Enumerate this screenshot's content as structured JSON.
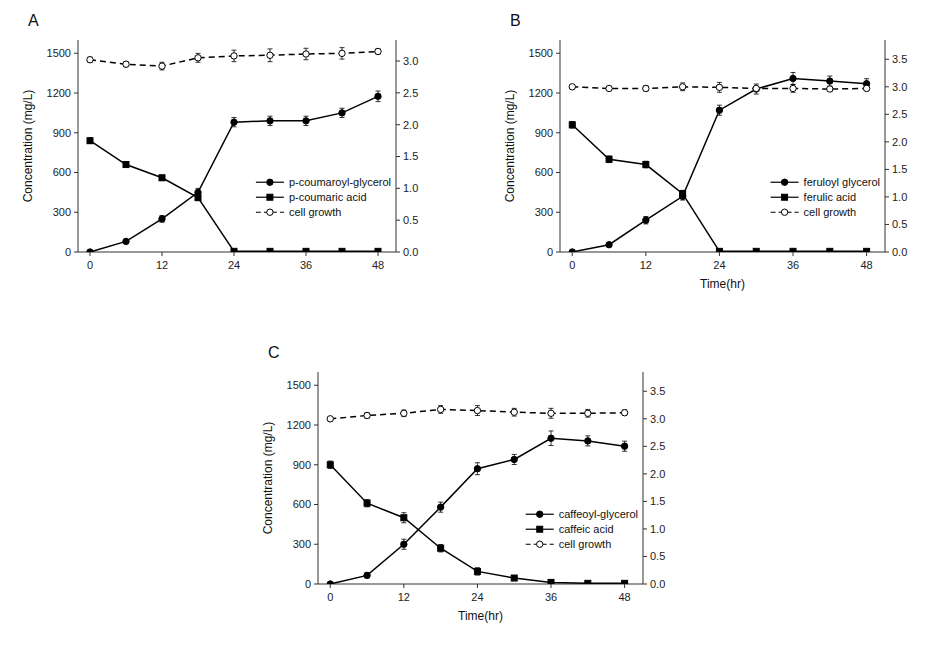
{
  "chart_data": [
    {
      "type": "line",
      "title": "A",
      "ylabel": "Concentration (mg/L)",
      "x": [
        0,
        6,
        12,
        18,
        24,
        30,
        36,
        42,
        48
      ],
      "xlim": [
        -2,
        51
      ],
      "xticks": [
        0,
        12,
        24,
        36,
        48
      ],
      "ylim": [
        0,
        1600
      ],
      "yticks": [
        0,
        300,
        600,
        900,
        1200,
        1500
      ],
      "y2lim": [
        0,
        3.33
      ],
      "y2ticks": [
        {
          "value": 0,
          "label": "0.0"
        },
        0.5,
        {
          "value": 1,
          "label": "1.0"
        },
        1.5,
        {
          "value": 2,
          "label": "2.0"
        },
        2.5,
        {
          "value": 3,
          "label": "3.0"
        }
      ],
      "grid": false,
      "legend": "lower right",
      "series": [
        {
          "name": "p-coumaroyl-glycerol",
          "color": "#000000",
          "marker": "circle",
          "line_style": "solid",
          "values": [
            0,
            80,
            250,
            450,
            980,
            990,
            990,
            1050,
            1175
          ],
          "errors": [
            0,
            15,
            25,
            30,
            35,
            35,
            35,
            35,
            40
          ]
        },
        {
          "name": "p-coumaric acid",
          "color": "#000000",
          "marker": "square",
          "line_style": "solid",
          "values": [
            840,
            660,
            560,
            410,
            5,
            5,
            5,
            5,
            5
          ],
          "errors": [
            20,
            20,
            20,
            20,
            3,
            3,
            3,
            3,
            3
          ]
        },
        {
          "name": "cell growth",
          "color": "#000000",
          "marker": "open-circle",
          "line_style": "dashed",
          "axis": "y2",
          "values": [
            3.02,
            2.95,
            2.92,
            3.05,
            3.08,
            3.09,
            3.11,
            3.12,
            3.15
          ],
          "errors": [
            0.04,
            0.04,
            0.06,
            0.07,
            0.09,
            0.1,
            0.09,
            0.09,
            0.04
          ]
        }
      ]
    },
    {
      "type": "line",
      "title": "B",
      "xlabel": "Time(hr)",
      "ylabel": "Concentration (mg/L)",
      "x": [
        0,
        6,
        12,
        18,
        24,
        30,
        36,
        42,
        48
      ],
      "xlim": [
        -2,
        51
      ],
      "xticks": [
        0,
        12,
        24,
        36,
        48
      ],
      "ylim": [
        0,
        1600
      ],
      "yticks": [
        0,
        300,
        600,
        900,
        1200,
        1500
      ],
      "y2lim": [
        0,
        3.85
      ],
      "y2ticks": [
        {
          "value": 0,
          "label": "0.0"
        },
        0.5,
        {
          "value": 1,
          "label": "1.0"
        },
        1.5,
        {
          "value": 2,
          "label": "2.0"
        },
        2.5,
        {
          "value": 3,
          "label": "3.0"
        },
        3.5
      ],
      "grid": false,
      "legend": "lower right",
      "series": [
        {
          "name": "feruloyl glycerol",
          "color": "#000000",
          "marker": "circle",
          "line_style": "solid",
          "values": [
            0,
            55,
            240,
            420,
            1070,
            1230,
            1310,
            1290,
            1270
          ],
          "errors": [
            0,
            12,
            28,
            28,
            38,
            38,
            45,
            38,
            38
          ]
        },
        {
          "name": "ferulic acid",
          "color": "#000000",
          "marker": "square",
          "line_style": "solid",
          "values": [
            960,
            700,
            660,
            440,
            5,
            5,
            5,
            5,
            5
          ],
          "errors": [
            25,
            25,
            25,
            25,
            3,
            3,
            3,
            3,
            3
          ]
        },
        {
          "name": "cell growth",
          "color": "#000000",
          "marker": "open-circle",
          "line_style": "dashed",
          "axis": "y2",
          "values": [
            3.0,
            2.97,
            2.97,
            3.0,
            2.99,
            2.97,
            2.97,
            2.96,
            2.97
          ],
          "errors": [
            0.04,
            0.04,
            0.05,
            0.07,
            0.09,
            0.04,
            0.07,
            0.04,
            0.04
          ]
        }
      ]
    },
    {
      "type": "line",
      "title": "C",
      "xlabel": "Time(hr)",
      "ylabel": "Concentration (mg/L)",
      "x": [
        0,
        6,
        12,
        18,
        24,
        30,
        36,
        42,
        48
      ],
      "xlim": [
        -2,
        51
      ],
      "xticks": [
        0,
        12,
        24,
        36,
        48
      ],
      "ylim": [
        0,
        1600
      ],
      "yticks": [
        0,
        300,
        600,
        900,
        1200,
        1500
      ],
      "y2lim": [
        0,
        3.85
      ],
      "y2ticks": [
        {
          "value": 0,
          "label": "0.0"
        },
        0.5,
        {
          "value": 1,
          "label": "1.0"
        },
        1.5,
        {
          "value": 2,
          "label": "2.0"
        },
        2.5,
        {
          "value": 3,
          "label": "3.0"
        },
        3.5
      ],
      "grid": false,
      "legend": "lower right",
      "series": [
        {
          "name": "caffeoyl-glycerol",
          "color": "#000000",
          "marker": "circle",
          "line_style": "solid",
          "values": [
            0,
            65,
            300,
            580,
            870,
            940,
            1100,
            1080,
            1040
          ],
          "errors": [
            0,
            18,
            38,
            38,
            45,
            38,
            55,
            38,
            38
          ]
        },
        {
          "name": "caffeic acid",
          "color": "#000000",
          "marker": "square",
          "line_style": "solid",
          "values": [
            900,
            610,
            500,
            270,
            95,
            45,
            12,
            5,
            5
          ],
          "errors": [
            28,
            28,
            38,
            28,
            28,
            18,
            4,
            3,
            3
          ]
        },
        {
          "name": "cell growth",
          "color": "#000000",
          "marker": "open-circle",
          "line_style": "dashed",
          "axis": "y2",
          "values": [
            3.0,
            3.06,
            3.1,
            3.17,
            3.15,
            3.12,
            3.1,
            3.1,
            3.11
          ],
          "errors": [
            0.04,
            0.05,
            0.06,
            0.07,
            0.09,
            0.07,
            0.09,
            0.07,
            0.05
          ]
        }
      ]
    }
  ]
}
